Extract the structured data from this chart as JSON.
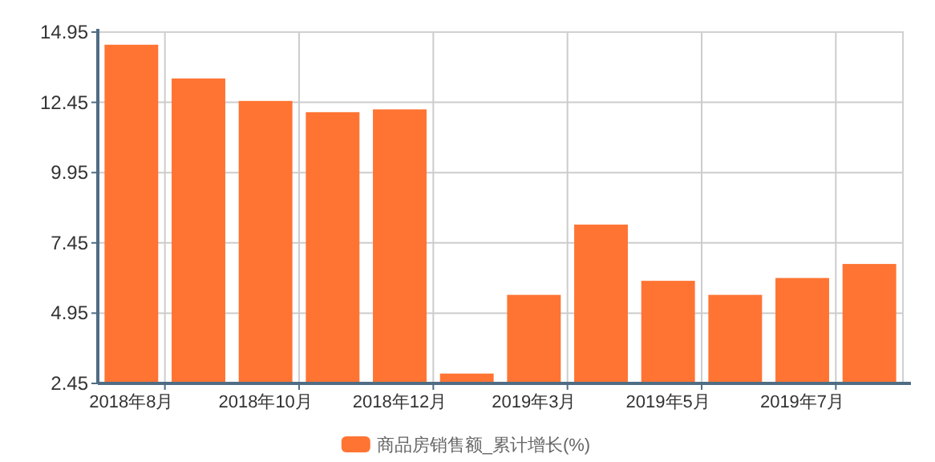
{
  "chart_data": {
    "type": "bar",
    "categories": [
      "2018年8月",
      null,
      "2018年10月",
      null,
      "2018年12月",
      null,
      "2019年3月",
      null,
      "2019年5月",
      null,
      "2019年7月",
      null
    ],
    "series": [
      {
        "name": "商品房销售额_累计增长(%)",
        "color": "#ff7433",
        "values": [
          14.5,
          13.3,
          12.5,
          12.1,
          12.2,
          2.8,
          5.6,
          8.1,
          6.1,
          5.6,
          6.2,
          6.7
        ]
      }
    ],
    "ylim": [
      2.45,
      14.95
    ],
    "yticks": [
      2.45,
      4.95,
      7.45,
      9.95,
      12.45,
      14.95
    ],
    "grid": true,
    "legend": "bottom"
  }
}
